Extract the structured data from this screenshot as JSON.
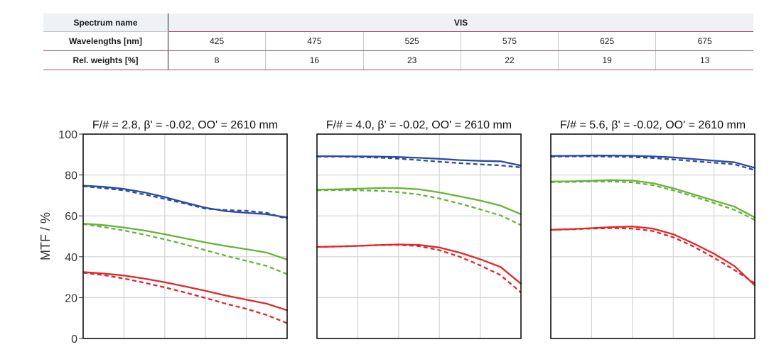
{
  "table": {
    "spectrum_label": "Spectrum name",
    "spectrum_value": "VIS",
    "wavelength_label": "Wavelengths [nm]",
    "wavelengths": [
      "425",
      "475",
      "525",
      "575",
      "625",
      "675"
    ],
    "weights_label": "Rel. weights [%]",
    "weights": [
      "8",
      "16",
      "23",
      "22",
      "19",
      "13"
    ]
  },
  "y_axis": {
    "label": "MTF / %",
    "ticks": [
      "0",
      "20",
      "40",
      "60",
      "80",
      "100"
    ]
  },
  "colors": {
    "blue": "#2b4aa0",
    "green": "#66b33a",
    "red": "#e0262b",
    "grid": "#d4d4d4"
  },
  "chart_data": [
    {
      "type": "line",
      "title": "F/# = 2.8, β' = -0.02, OO' = 2610 mm",
      "ylim": [
        0,
        100
      ],
      "xlim": [
        0,
        1
      ],
      "grid": true,
      "series": [
        {
          "color": "blue",
          "style": "solid",
          "x": [
            0,
            0.1,
            0.2,
            0.3,
            0.4,
            0.5,
            0.6,
            0.7,
            0.8,
            0.9,
            1.0
          ],
          "y": [
            74.8,
            74.2,
            73.2,
            71.5,
            69.2,
            66.5,
            64,
            62.3,
            61.5,
            60.8,
            59.2
          ]
        },
        {
          "color": "blue",
          "style": "dashed",
          "x": [
            0,
            0.1,
            0.2,
            0.3,
            0.4,
            0.5,
            0.6,
            0.7,
            0.8,
            0.9,
            1.0
          ],
          "y": [
            74.5,
            73.5,
            72.5,
            70.5,
            68.3,
            66,
            63.5,
            62.8,
            62.5,
            61.5,
            58.5
          ]
        },
        {
          "color": "green",
          "style": "solid",
          "x": [
            0,
            0.1,
            0.2,
            0.3,
            0.4,
            0.5,
            0.6,
            0.7,
            0.8,
            0.9,
            1.0
          ],
          "y": [
            56.2,
            55.5,
            54.3,
            52.8,
            51,
            49,
            47,
            45.2,
            43.7,
            42,
            38.6
          ]
        },
        {
          "color": "green",
          "style": "dashed",
          "x": [
            0,
            0.1,
            0.2,
            0.3,
            0.4,
            0.5,
            0.6,
            0.7,
            0.8,
            0.9,
            1.0
          ],
          "y": [
            56,
            54.5,
            52.8,
            50.8,
            48.5,
            46,
            43.2,
            40.5,
            38,
            35.5,
            31.5
          ]
        },
        {
          "color": "red",
          "style": "solid",
          "x": [
            0,
            0.1,
            0.2,
            0.3,
            0.4,
            0.5,
            0.6,
            0.7,
            0.8,
            0.9,
            1.0
          ],
          "y": [
            32.5,
            31.8,
            30.8,
            29.3,
            27.5,
            25.5,
            23.3,
            21,
            19,
            17,
            13.8
          ]
        },
        {
          "color": "red",
          "style": "dashed",
          "x": [
            0,
            0.1,
            0.2,
            0.3,
            0.4,
            0.5,
            0.6,
            0.7,
            0.8,
            0.9,
            1.0
          ],
          "y": [
            32.2,
            31,
            29.3,
            27.3,
            25,
            22.5,
            19.8,
            17,
            14.5,
            11.5,
            7.5
          ]
        }
      ]
    },
    {
      "type": "line",
      "title": "F/# = 4.0, β' = -0.02, OO' = 2610 mm",
      "ylim": [
        0,
        100
      ],
      "xlim": [
        0,
        1
      ],
      "grid": true,
      "series": [
        {
          "color": "blue",
          "style": "solid",
          "x": [
            0,
            0.1,
            0.2,
            0.3,
            0.4,
            0.5,
            0.6,
            0.7,
            0.8,
            0.9,
            1.0
          ],
          "y": [
            89.2,
            89.2,
            89.1,
            89,
            88.8,
            88.4,
            87.9,
            87.3,
            86.9,
            86.7,
            84.6
          ]
        },
        {
          "color": "blue",
          "style": "dashed",
          "x": [
            0,
            0.1,
            0.2,
            0.3,
            0.4,
            0.5,
            0.6,
            0.7,
            0.8,
            0.9,
            1.0
          ],
          "y": [
            89,
            89,
            88.8,
            88.5,
            88,
            87.3,
            86.5,
            85.8,
            85.2,
            84.7,
            83.7
          ]
        },
        {
          "color": "green",
          "style": "solid",
          "x": [
            0,
            0.1,
            0.2,
            0.3,
            0.4,
            0.5,
            0.6,
            0.7,
            0.8,
            0.9,
            1.0
          ],
          "y": [
            72.8,
            73,
            73.3,
            73.6,
            73.6,
            73,
            71.5,
            69.5,
            67.5,
            65,
            60.8
          ]
        },
        {
          "color": "green",
          "style": "dashed",
          "x": [
            0,
            0.1,
            0.2,
            0.3,
            0.4,
            0.5,
            0.6,
            0.7,
            0.8,
            0.9,
            1.0
          ],
          "y": [
            72.5,
            72.6,
            72.5,
            72.3,
            71.6,
            70.4,
            68.5,
            66,
            63.2,
            60.2,
            55.5
          ]
        },
        {
          "color": "red",
          "style": "solid",
          "x": [
            0,
            0.1,
            0.2,
            0.3,
            0.4,
            0.5,
            0.6,
            0.7,
            0.8,
            0.9,
            1.0
          ],
          "y": [
            44.8,
            45,
            45.3,
            45.7,
            46,
            45.8,
            44.5,
            42,
            38.8,
            35,
            26.8
          ]
        },
        {
          "color": "red",
          "style": "dashed",
          "x": [
            0,
            0.1,
            0.2,
            0.3,
            0.4,
            0.5,
            0.6,
            0.7,
            0.8,
            0.9,
            1.0
          ],
          "y": [
            44.8,
            45,
            45.3,
            45.7,
            45.8,
            45.2,
            43.2,
            40,
            35.8,
            31,
            22.5
          ]
        }
      ]
    },
    {
      "type": "line",
      "title": "F/# = 5.6, β' = -0.02, OO' = 2610 mm",
      "ylim": [
        0,
        100
      ],
      "xlim": [
        0,
        1
      ],
      "grid": true,
      "series": [
        {
          "color": "blue",
          "style": "solid",
          "x": [
            0,
            0.1,
            0.2,
            0.3,
            0.4,
            0.5,
            0.6,
            0.7,
            0.8,
            0.9,
            1.0
          ],
          "y": [
            89.3,
            89.4,
            89.5,
            89.5,
            89.4,
            89.1,
            88.6,
            87.8,
            87,
            86.2,
            83.5
          ]
        },
        {
          "color": "blue",
          "style": "dashed",
          "x": [
            0,
            0.1,
            0.2,
            0.3,
            0.4,
            0.5,
            0.6,
            0.7,
            0.8,
            0.9,
            1.0
          ],
          "y": [
            89,
            89.1,
            89.1,
            89,
            88.8,
            88.3,
            87.6,
            86.8,
            86,
            85.2,
            82.4
          ]
        },
        {
          "color": "green",
          "style": "solid",
          "x": [
            0,
            0.1,
            0.2,
            0.3,
            0.4,
            0.5,
            0.6,
            0.7,
            0.8,
            0.9,
            1.0
          ],
          "y": [
            76.8,
            76.9,
            77.2,
            77.5,
            77.3,
            76,
            73.5,
            70.5,
            67.5,
            64.5,
            59.2
          ]
        },
        {
          "color": "green",
          "style": "dashed",
          "x": [
            0,
            0.1,
            0.2,
            0.3,
            0.4,
            0.5,
            0.6,
            0.7,
            0.8,
            0.9,
            1.0
          ],
          "y": [
            76.5,
            76.6,
            76.8,
            76.8,
            76.4,
            75,
            72.5,
            69.5,
            66.3,
            63,
            58
          ]
        },
        {
          "color": "red",
          "style": "solid",
          "x": [
            0,
            0.1,
            0.2,
            0.3,
            0.4,
            0.5,
            0.6,
            0.7,
            0.8,
            0.9,
            1.0
          ],
          "y": [
            53.2,
            53.5,
            54,
            54.5,
            54.8,
            53.8,
            51,
            46.5,
            41.5,
            35.5,
            26
          ]
        },
        {
          "color": "red",
          "style": "dashed",
          "x": [
            0,
            0.1,
            0.2,
            0.3,
            0.4,
            0.5,
            0.6,
            0.7,
            0.8,
            0.9,
            1.0
          ],
          "y": [
            53.2,
            53.4,
            53.8,
            54,
            53.8,
            52.6,
            49.5,
            45,
            39.5,
            33.5,
            27
          ]
        }
      ]
    }
  ]
}
